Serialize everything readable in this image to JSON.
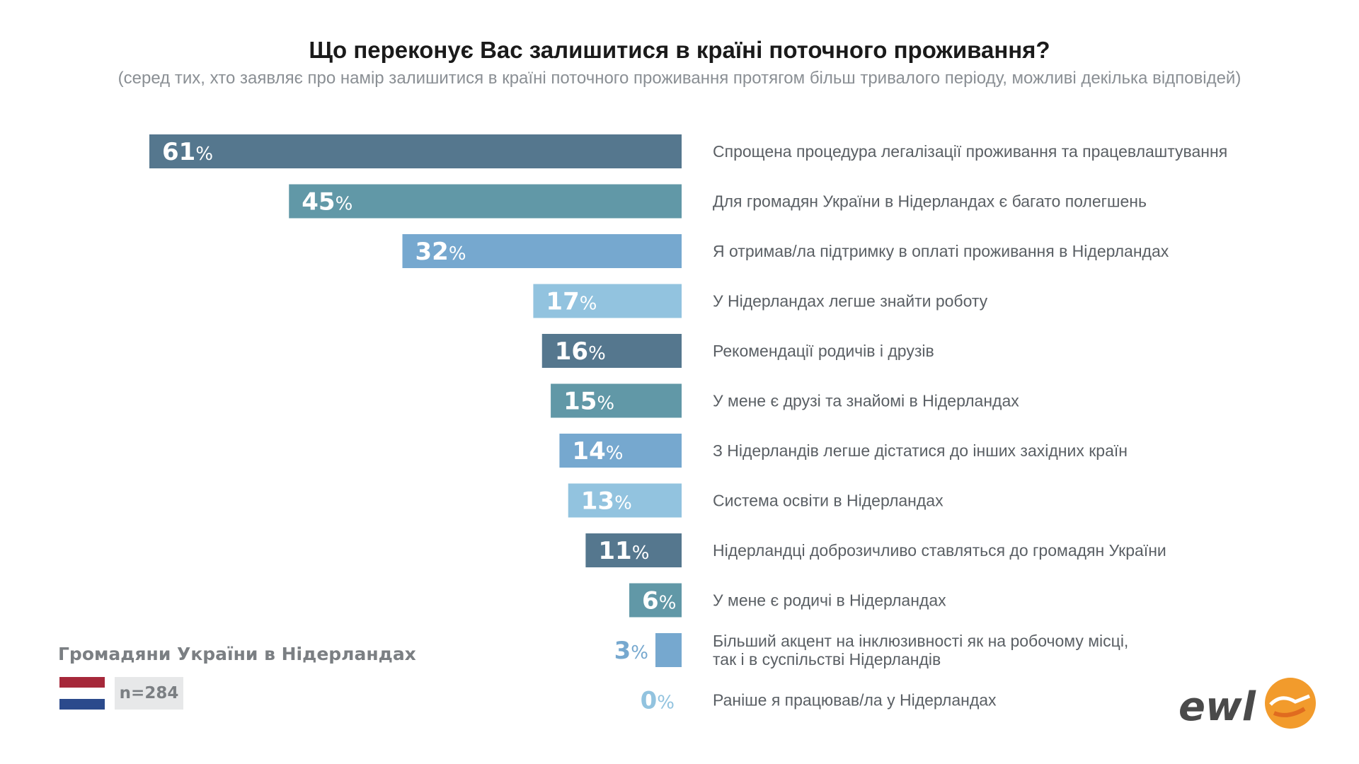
{
  "title": "Що переконує Вас залишитися в країні поточного проживання?",
  "subtitle": "(серед тих, хто заявляє про намір залишитися в країні поточного проживання протягом більш тривалого періоду, можливі декілька відповідей)",
  "country_label": "Громадяни України в Нідерландах",
  "sample_label": "n=284",
  "logo_text": "ewl",
  "colors": {
    "dark": "#55778e",
    "teal": "#6198a7",
    "mid": "#76a8cf",
    "light": "#92c3df",
    "label": "#5a5f64",
    "flag_red": "#a6283a",
    "flag_white": "#ffffff",
    "flag_blue": "#2b4a8c",
    "logo_orange": "#f29b2c"
  },
  "chart_data": {
    "type": "bar",
    "orientation": "horizontal",
    "unit": "%",
    "xlim": [
      0,
      61
    ],
    "categories": [
      "Спрощена процедура легалізації проживання та працевлаштування",
      "Для громадян України в Нідерландах є багато полегшень",
      "Я отримав/ла підтримку в оплаті проживання в Нідерландах",
      "У Нідерландах легше знайти роботу",
      "Рекомендації родичів і друзів",
      "У мене є друзі та знайомі в Нідерландах",
      "З Нідерландів легше дістатися до інших західних країн",
      "Система освіти в Нідерландах",
      "Нідерландці доброзичливо ставляться до громадян України",
      "У мене є родичі в Нідерландах",
      "Більший акцент на інклюзивності як на робочому місці,\nтак і в суспільстві Нідерландів",
      "Раніше я працював/ла у Нідерландах"
    ],
    "values": [
      61,
      45,
      32,
      17,
      16,
      15,
      14,
      13,
      11,
      6,
      3,
      0
    ],
    "bar_colors": [
      "#55778e",
      "#6198a7",
      "#76a8cf",
      "#92c3df",
      "#55778e",
      "#6198a7",
      "#76a8cf",
      "#92c3df",
      "#55778e",
      "#6198a7",
      "#76a8cf",
      "#92c3df"
    ]
  }
}
